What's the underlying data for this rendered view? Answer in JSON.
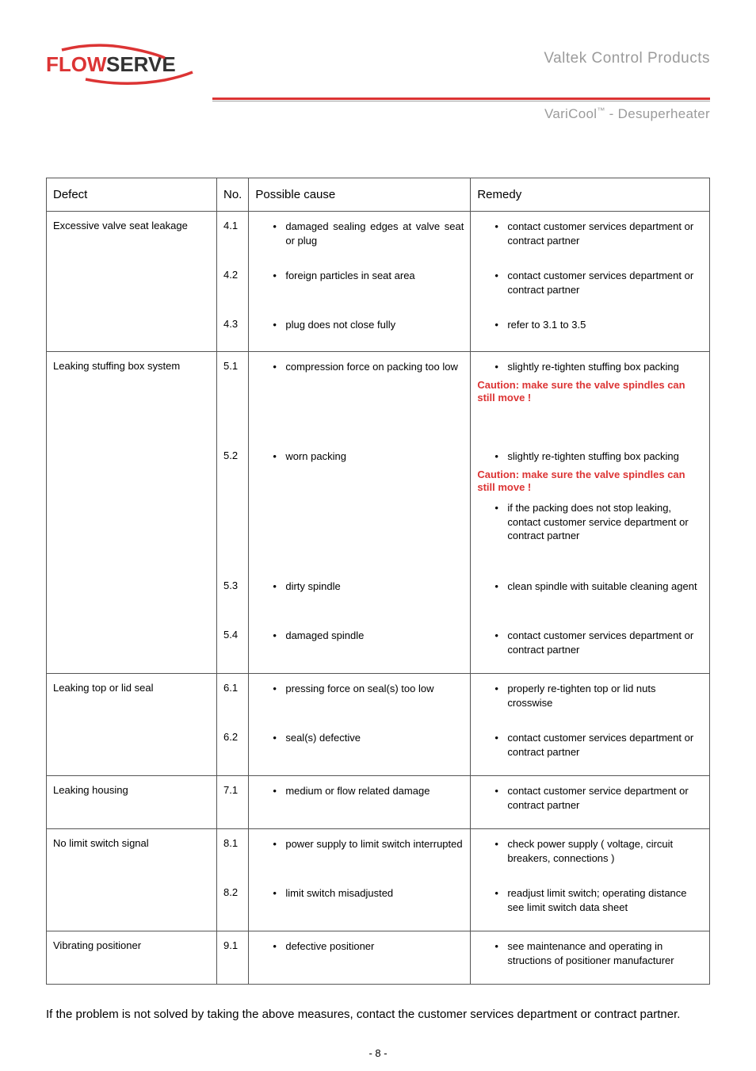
{
  "header": {
    "brand": "Valtek Control Products",
    "product": "VariCool",
    "product_suffix": " - Desuperheater",
    "logo_text_flow": "FLOW",
    "logo_text_serve": "SERVE"
  },
  "table": {
    "headers": {
      "defect": "Defect",
      "no": "No.",
      "cause": "Possible cause",
      "remedy": "Remedy"
    },
    "colors": {
      "caution": "#dc3434",
      "border": "#555555"
    }
  },
  "rows": [
    {
      "defect": "Excessive valve seat leakage",
      "items": [
        {
          "no": "4.1",
          "cause": "damaged sealing edges at valve seat or plug",
          "cause_justify": true,
          "remedy": [
            {
              "type": "bullet",
              "text": "contact customer services department or contract partner"
            }
          ]
        },
        {
          "no": "4.2",
          "cause": "foreign particles in seat area",
          "remedy": [
            {
              "type": "bullet",
              "text": "contact customer services department or contract partner"
            }
          ]
        },
        {
          "no": "4.3",
          "cause": "plug does not close fully",
          "remedy": [
            {
              "type": "bullet",
              "text": "refer to 3.1 to 3.5"
            }
          ]
        }
      ]
    },
    {
      "defect": "Leaking stuffing box system",
      "items": [
        {
          "no": "5.1",
          "cause": "compression force on packing too low",
          "remedy": [
            {
              "type": "bullet",
              "text": "slightly re-tighten stuffing box packing"
            },
            {
              "type": "caution",
              "text": "Caution: make sure the valve spindles can still move !"
            }
          ]
        },
        {
          "no": "5.2",
          "cause": "worn packing",
          "remedy": [
            {
              "type": "bullet",
              "text": "slightly re-tighten stuffing box packing"
            },
            {
              "type": "caution",
              "text": "Caution: make sure the valve spindles can still move !"
            },
            {
              "type": "bullet",
              "text": "if the packing does not stop leaking, contact customer service department or contract partner"
            }
          ]
        },
        {
          "no": "5.3",
          "cause": "dirty spindle",
          "remedy": [
            {
              "type": "bullet",
              "text": "clean spindle with suitable cleaning agent"
            }
          ]
        },
        {
          "no": "5.4",
          "cause": "damaged spindle",
          "remedy": [
            {
              "type": "bullet",
              "text": "contact customer services department or contract partner"
            }
          ]
        }
      ]
    },
    {
      "defect": "Leaking top or lid seal",
      "items": [
        {
          "no": "6.1",
          "cause": "pressing force on seal(s) too low",
          "remedy": [
            {
              "type": "bullet",
              "text": "properly re-tighten top or lid nuts crosswise"
            }
          ]
        },
        {
          "no": "6.2",
          "cause": "seal(s) defective",
          "remedy": [
            {
              "type": "bullet",
              "text": "contact customer services department or contract partner"
            }
          ]
        }
      ]
    },
    {
      "defect": "Leaking housing",
      "items": [
        {
          "no": "7.1",
          "cause": "medium or flow related damage",
          "remedy": [
            {
              "type": "bullet",
              "text": "contact customer service department or contract partner"
            }
          ]
        }
      ]
    },
    {
      "defect": "No limit switch signal",
      "items": [
        {
          "no": "8.1",
          "cause": "power supply to limit switch interrupted",
          "remedy": [
            {
              "type": "bullet",
              "text": "check power supply ( voltage, circuit breakers, connections )"
            }
          ]
        },
        {
          "no": "8.2",
          "cause": "limit switch misadjusted",
          "remedy": [
            {
              "type": "bullet",
              "text": "readjust limit switch; operating distance see limit switch data sheet"
            }
          ]
        }
      ]
    },
    {
      "defect": "Vibrating positioner",
      "items": [
        {
          "no": "9.1",
          "cause": "defective positioner",
          "remedy": [
            {
              "type": "bullet",
              "text": "see maintenance and operating in structions of positioner manufacturer"
            }
          ]
        }
      ]
    }
  ],
  "footer_note": "If the problem is not solved by taking the above measures, contact the customer services department or contract partner.",
  "page_number": "- 8 -"
}
